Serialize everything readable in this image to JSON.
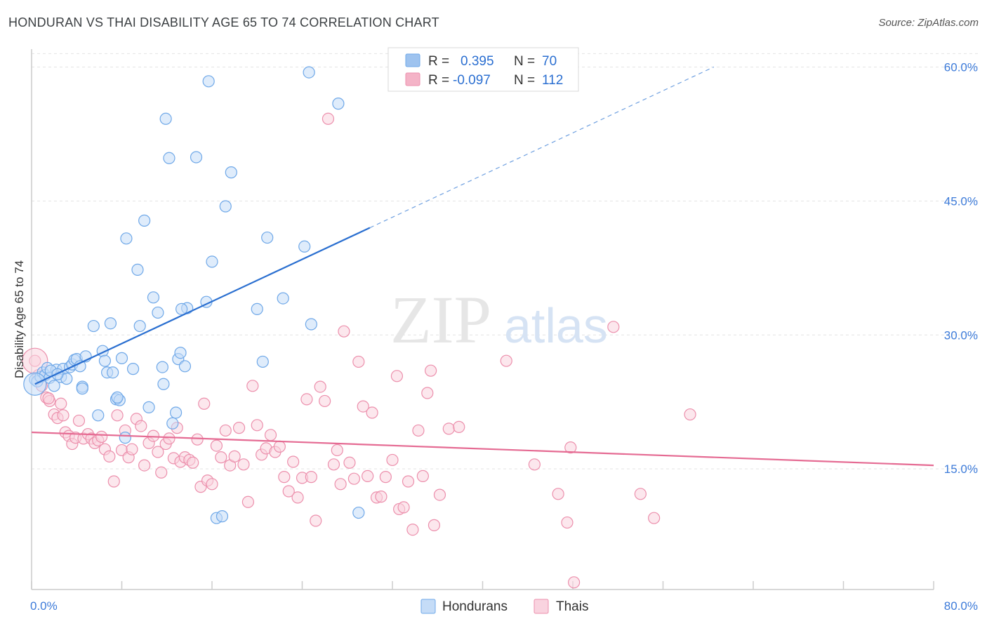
{
  "header": {
    "title": "HONDURAN VS THAI DISABILITY AGE 65 TO 74 CORRELATION CHART",
    "source": "Source: ZipAtlas.com"
  },
  "watermark": {
    "text_zip": "ZIP",
    "text_atlas": "atlas"
  },
  "legend_box": {
    "rows": [
      {
        "r_label": "R =",
        "r_value": "0.395",
        "n_label": "N =",
        "n_value": "70",
        "color": "#9ec3ef"
      },
      {
        "r_label": "R =",
        "r_value": "-0.097",
        "n_label": "N =",
        "n_value": "112",
        "color": "#f4b3c7"
      }
    ]
  },
  "chart_data": {
    "type": "scatter",
    "title": "HONDURAN VS THAI DISABILITY AGE 65 TO 74 CORRELATION CHART",
    "xlabel": "",
    "ylabel": "Disability Age 65 to 74",
    "xlim": [
      0,
      80
    ],
    "ylim": [
      1.5,
      62
    ],
    "x_tick_labels": [
      "0.0%",
      "80.0%"
    ],
    "y_ticks": [
      15,
      30,
      45,
      60
    ],
    "y_tick_labels": [
      "15.0%",
      "30.0%",
      "45.0%",
      "60.0%"
    ],
    "grid": true,
    "legend_position": "bottom",
    "series": [
      {
        "name": "Hondurans",
        "color": "#6fa8e8",
        "fill": "#c5dcf7",
        "trend": {
          "x0": 0.3,
          "y0": 24.5,
          "x1": 30,
          "y1": 42,
          "x_dash_end": 60.5,
          "y_dash_end": 60
        },
        "points": [
          [
            0.3,
            25
          ],
          [
            0.5,
            24.8
          ],
          [
            0.8,
            25.3
          ],
          [
            1,
            25.8
          ],
          [
            1.2,
            25.5
          ],
          [
            1.4,
            26.3
          ],
          [
            1.6,
            25.2
          ],
          [
            2,
            24.3
          ],
          [
            2.2,
            26.1
          ],
          [
            2.6,
            25.3
          ],
          [
            2.8,
            26.2
          ],
          [
            3.1,
            25.1
          ],
          [
            3.4,
            26.4
          ],
          [
            3.6,
            26.7
          ],
          [
            3.8,
            27.2
          ],
          [
            4,
            27.3
          ],
          [
            4.3,
            26.5
          ],
          [
            4.5,
            24.2
          ],
          [
            4.8,
            27.6
          ],
          [
            5.5,
            31
          ],
          [
            5.9,
            21
          ],
          [
            6.3,
            28.2
          ],
          [
            6.5,
            27.1
          ],
          [
            6.7,
            25.8
          ],
          [
            7,
            31.3
          ],
          [
            7.2,
            25.8
          ],
          [
            7.5,
            22.8
          ],
          [
            7.8,
            22.7
          ],
          [
            8,
            27.4
          ],
          [
            8.3,
            18.5
          ],
          [
            8.4,
            40.8
          ],
          [
            9,
            26.2
          ],
          [
            9.4,
            37.3
          ],
          [
            9.6,
            31
          ],
          [
            10,
            42.8
          ],
          [
            10.4,
            21.9
          ],
          [
            10.8,
            34.2
          ],
          [
            11.2,
            32.5
          ],
          [
            11.6,
            26.4
          ],
          [
            11.7,
            24.5
          ],
          [
            11.9,
            54.2
          ],
          [
            12.2,
            49.8
          ],
          [
            12.5,
            20.1
          ],
          [
            12.8,
            21.3
          ],
          [
            13,
            27.3
          ],
          [
            13.2,
            28
          ],
          [
            13.6,
            26.5
          ],
          [
            13.8,
            33
          ],
          [
            14.6,
            49.9
          ],
          [
            15.5,
            33.7
          ],
          [
            15.7,
            58.4
          ],
          [
            16,
            38.2
          ],
          [
            16.4,
            9.5
          ],
          [
            16.9,
            9.7
          ],
          [
            17.2,
            44.4
          ],
          [
            17.7,
            48.2
          ],
          [
            20.5,
            27
          ],
          [
            20.9,
            40.9
          ],
          [
            20,
            32.9
          ],
          [
            22.3,
            34.1
          ],
          [
            24.2,
            39.9
          ],
          [
            24.6,
            59.4
          ],
          [
            24.8,
            31.2
          ],
          [
            27.2,
            55.9
          ],
          [
            29,
            10.1
          ],
          [
            13.3,
            32.9
          ],
          [
            4.5,
            24
          ],
          [
            7.6,
            23
          ],
          [
            1.7,
            26
          ],
          [
            2.3,
            25.6
          ]
        ]
      },
      {
        "name": "Thais",
        "color": "#ec8fac",
        "fill": "#f9d3df",
        "trend": {
          "x0": 0,
          "y0": 19.1,
          "x1": 80,
          "y1": 15.4
        },
        "points": [
          [
            0.3,
            27.1
          ],
          [
            0.6,
            25.5
          ],
          [
            0.9,
            24.3
          ],
          [
            1.3,
            23
          ],
          [
            1.6,
            22.6
          ],
          [
            2,
            21.1
          ],
          [
            2.3,
            20.7
          ],
          [
            2.6,
            22.3
          ],
          [
            3,
            19.1
          ],
          [
            3.3,
            18.7
          ],
          [
            3.6,
            17.8
          ],
          [
            3.9,
            18.5
          ],
          [
            4.2,
            20.4
          ],
          [
            4.6,
            18.4
          ],
          [
            5,
            18.9
          ],
          [
            5.3,
            18.4
          ],
          [
            5.6,
            17.9
          ],
          [
            5.9,
            18.2
          ],
          [
            6.2,
            18.6
          ],
          [
            6.5,
            17.2
          ],
          [
            6.9,
            16.4
          ],
          [
            7.3,
            13.6
          ],
          [
            7.6,
            21
          ],
          [
            8,
            17.1
          ],
          [
            8.3,
            19.3
          ],
          [
            8.6,
            16.3
          ],
          [
            8.9,
            17.2
          ],
          [
            9.3,
            20.6
          ],
          [
            9.7,
            19.8
          ],
          [
            10,
            15.4
          ],
          [
            10.4,
            17.9
          ],
          [
            10.8,
            18.7
          ],
          [
            11.2,
            16.9
          ],
          [
            11.5,
            14.6
          ],
          [
            11.9,
            17.8
          ],
          [
            12.2,
            18.4
          ],
          [
            12.6,
            16.2
          ],
          [
            12.9,
            19.6
          ],
          [
            13.2,
            15.8
          ],
          [
            13.6,
            16.3
          ],
          [
            14,
            16
          ],
          [
            14.3,
            15.7
          ],
          [
            14.7,
            18.3
          ],
          [
            15,
            13
          ],
          [
            15.3,
            22.3
          ],
          [
            15.6,
            13.7
          ],
          [
            16,
            13.3
          ],
          [
            16.4,
            17.6
          ],
          [
            16.8,
            16.3
          ],
          [
            17.2,
            19.3
          ],
          [
            17.6,
            15.4
          ],
          [
            18,
            16.4
          ],
          [
            18.4,
            19.6
          ],
          [
            18.8,
            15.5
          ],
          [
            19.2,
            11.3
          ],
          [
            19.6,
            24.3
          ],
          [
            20,
            19.9
          ],
          [
            20.4,
            16.6
          ],
          [
            20.8,
            17.3
          ],
          [
            21.2,
            18.8
          ],
          [
            21.6,
            16.9
          ],
          [
            22,
            17.5
          ],
          [
            22.4,
            14.1
          ],
          [
            22.8,
            12.5
          ],
          [
            23.2,
            15.8
          ],
          [
            23.6,
            11.8
          ],
          [
            24,
            14
          ],
          [
            24.4,
            22.8
          ],
          [
            24.8,
            14.1
          ],
          [
            25.2,
            9.2
          ],
          [
            25.6,
            24.2
          ],
          [
            26,
            22.6
          ],
          [
            26.3,
            54.2
          ],
          [
            26.8,
            15.5
          ],
          [
            27.1,
            17.1
          ],
          [
            27.4,
            13.3
          ],
          [
            27.7,
            30.4
          ],
          [
            28.2,
            15.7
          ],
          [
            28.6,
            13.9
          ],
          [
            29,
            27
          ],
          [
            29.4,
            22
          ],
          [
            29.8,
            14.2
          ],
          [
            30.2,
            21.3
          ],
          [
            30.6,
            11.8
          ],
          [
            31,
            11.9
          ],
          [
            31.4,
            14.1
          ],
          [
            32,
            16
          ],
          [
            32.4,
            25.4
          ],
          [
            32.6,
            10.5
          ],
          [
            33,
            10.7
          ],
          [
            33.4,
            13.6
          ],
          [
            33.8,
            8.2
          ],
          [
            34.3,
            19.3
          ],
          [
            34.7,
            14.2
          ],
          [
            35.1,
            23.5
          ],
          [
            35.4,
            26
          ],
          [
            35.7,
            8.7
          ],
          [
            36.2,
            12.1
          ],
          [
            37,
            19.5
          ],
          [
            37.9,
            19.7
          ],
          [
            42.1,
            27.1
          ],
          [
            44.6,
            15.5
          ],
          [
            46.7,
            12.2
          ],
          [
            47.5,
            9
          ],
          [
            47.8,
            17.4
          ],
          [
            48.1,
            2.3
          ],
          [
            51.6,
            30.9
          ],
          [
            54,
            12.2
          ],
          [
            55.2,
            9.5
          ],
          [
            58.4,
            21.1
          ],
          [
            1.5,
            22.9
          ],
          [
            2.8,
            21
          ]
        ]
      }
    ]
  },
  "bottom_legend": {
    "items": [
      {
        "label": "Hondurans"
      },
      {
        "label": "Thais"
      }
    ]
  }
}
